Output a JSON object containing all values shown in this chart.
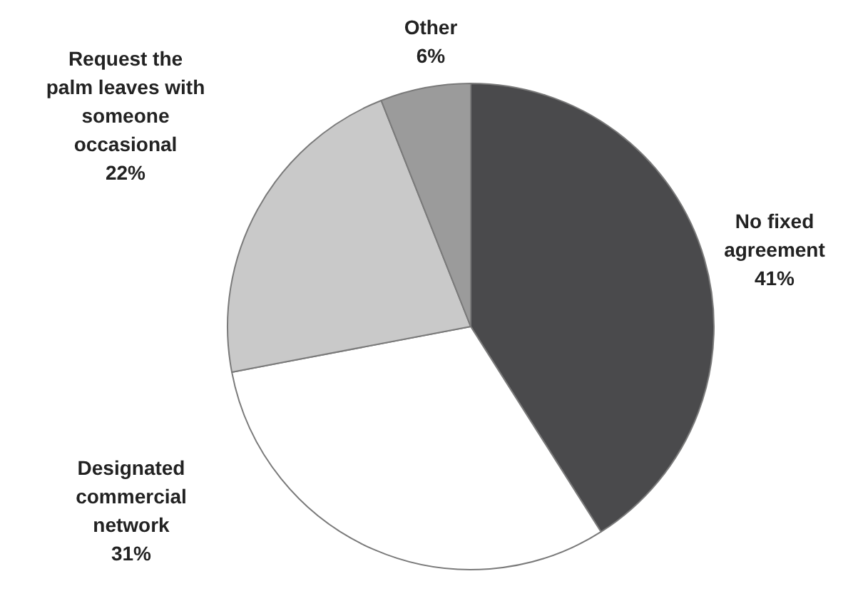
{
  "chart_data": {
    "type": "pie",
    "categories": [
      "No fixed agreement",
      "Designated commercial network",
      "Request the palm leaves with someone occasional",
      "Other"
    ],
    "values": [
      41,
      31,
      22,
      6
    ],
    "value_labels": [
      "41%",
      "31%",
      "22%",
      "6%"
    ],
    "colors": [
      "#4a4a4c",
      "#ffffff",
      "#c9c9c9",
      "#9b9b9b"
    ],
    "legend": false
  }
}
